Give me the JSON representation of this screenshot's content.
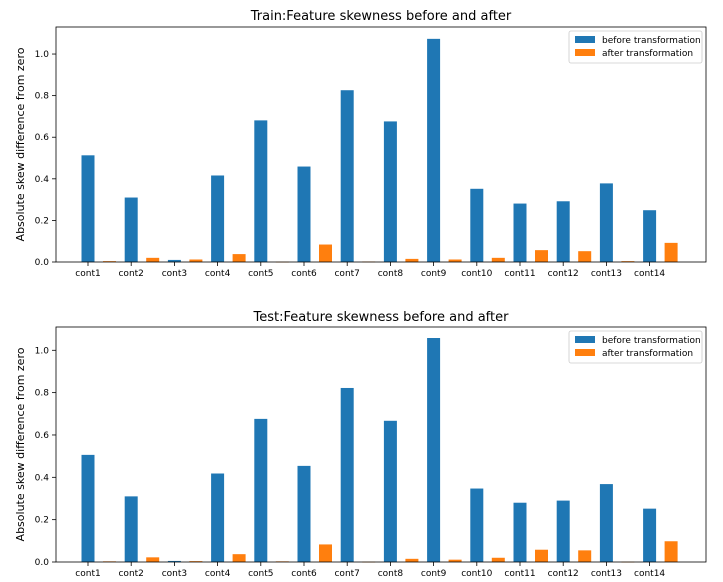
{
  "chart_data": [
    {
      "type": "bar",
      "title": "Train:Feature skewness before and after",
      "xlabel": "",
      "ylabel": "Absolute skew difference from zero",
      "ylim": [
        0,
        1.13
      ],
      "yticks": [
        "0.0",
        "0.2",
        "0.4",
        "0.6",
        "0.8",
        "1.0"
      ],
      "legend_position": "top-right",
      "categories": [
        "cont1",
        "cont2",
        "cont3",
        "cont4",
        "cont5",
        "cont6",
        "cont7",
        "cont8",
        "cont9",
        "cont10",
        "cont11",
        "cont12",
        "cont13",
        "cont14"
      ],
      "series": [
        {
          "name": "before transformation",
          "color": "#1f77b4",
          "values": [
            0.513,
            0.31,
            0.01,
            0.416,
            0.681,
            0.459,
            0.826,
            0.676,
            1.073,
            0.352,
            0.281,
            0.292,
            0.378,
            0.249
          ]
        },
        {
          "name": "after transformation",
          "color": "#ff7f0e",
          "values": [
            0.004,
            0.02,
            0.012,
            0.038,
            0.001,
            0.084,
            0.002,
            0.015,
            0.012,
            0.02,
            0.057,
            0.052,
            0.004,
            0.092
          ]
        }
      ]
    },
    {
      "type": "bar",
      "title": "Test:Feature skewness before and after",
      "xlabel": "",
      "ylabel": "Absolute skew difference from zero",
      "ylim": [
        0,
        1.11
      ],
      "yticks": [
        "0.0",
        "0.2",
        "0.4",
        "0.6",
        "0.8",
        "1.0"
      ],
      "legend_position": "top-right",
      "categories": [
        "cont1",
        "cont2",
        "cont3",
        "cont4",
        "cont5",
        "cont6",
        "cont7",
        "cont8",
        "cont9",
        "cont10",
        "cont11",
        "cont12",
        "cont13",
        "cont14"
      ],
      "series": [
        {
          "name": "before transformation",
          "color": "#1f77b4",
          "values": [
            0.506,
            0.31,
            0.005,
            0.418,
            0.676,
            0.454,
            0.822,
            0.667,
            1.058,
            0.347,
            0.28,
            0.29,
            0.368,
            0.252
          ]
        },
        {
          "name": "after transformation",
          "color": "#ff7f0e",
          "values": [
            0.003,
            0.022,
            0.004,
            0.037,
            0.003,
            0.083,
            0.001,
            0.015,
            0.011,
            0.02,
            0.058,
            0.055,
            0.001,
            0.098
          ]
        }
      ]
    }
  ]
}
